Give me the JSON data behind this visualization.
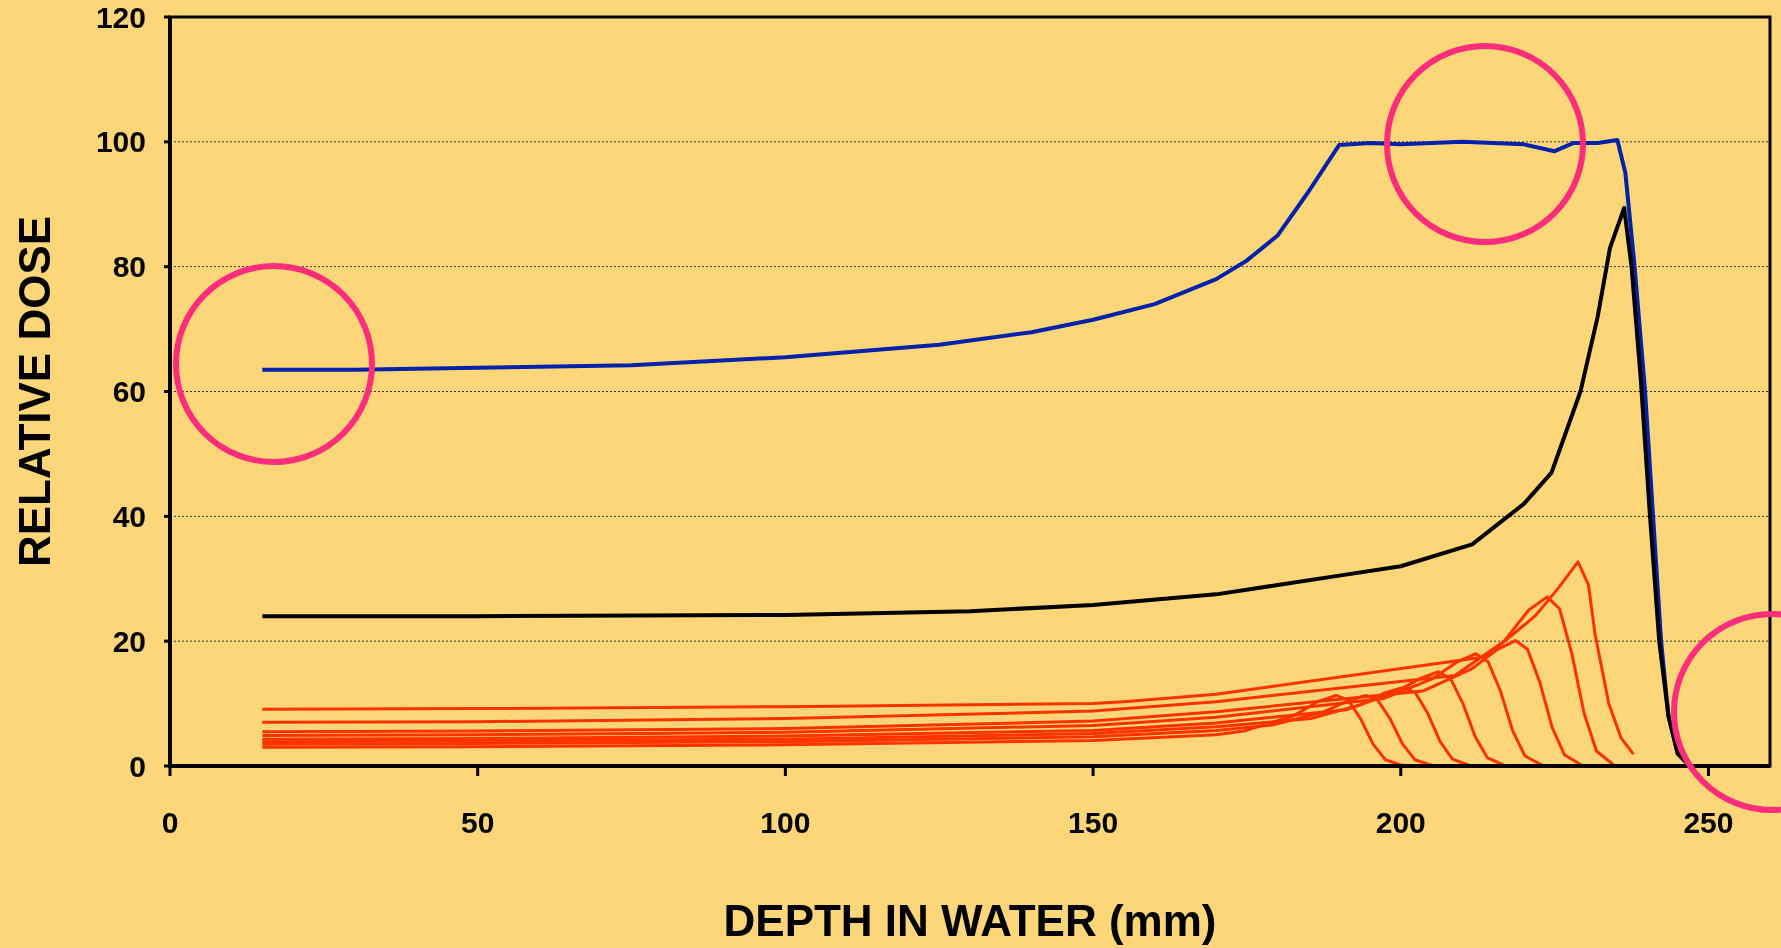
{
  "chart_data": {
    "type": "line",
    "xlabel": "DEPTH IN WATER (mm)",
    "ylabel": "RELATIVE DOSE",
    "xlim": [
      0,
      260
    ],
    "xticks": [
      0,
      50,
      100,
      150,
      200,
      250
    ],
    "ylim": [
      0,
      120
    ],
    "yticks": [
      0,
      20,
      40,
      60,
      80,
      100,
      120
    ],
    "grid": "y",
    "line_style": "solid",
    "series": [
      {
        "color": "#0022aa",
        "x": [
          15,
          30,
          50,
          75,
          100,
          125,
          140,
          150,
          160,
          170,
          175,
          180,
          185,
          190,
          195,
          200,
          210,
          215,
          220,
          225,
          228,
          232,
          235.2,
          236.5,
          238,
          239.7,
          241,
          242.3,
          243.5,
          245,
          246.5
        ],
        "values": [
          63.5,
          63.5,
          63.8,
          64.2,
          65.5,
          67.5,
          69.5,
          71.5,
          74,
          78,
          81,
          85,
          92,
          99.5,
          99.8,
          99.6,
          100,
          99.8,
          99.6,
          98.5,
          99.8,
          99.8,
          100.3,
          95,
          80,
          60,
          40,
          20,
          8,
          2,
          0.5
        ]
      },
      {
        "color": "#000000",
        "x": [
          15,
          50,
          100,
          130,
          150,
          170,
          180,
          190,
          200,
          211.6,
          220,
          224.5,
          229.2,
          232,
          234,
          236.3,
          237.5,
          239,
          240.5,
          242,
          243.5,
          245,
          247
        ],
        "values": [
          24,
          24,
          24.2,
          24.8,
          25.8,
          27.5,
          29,
          30.5,
          32,
          35.5,
          42,
          47,
          60,
          72,
          83,
          89.4,
          80,
          62,
          40,
          20,
          8,
          2,
          0
        ]
      },
      {
        "color": "#ff3300",
        "x": [
          15,
          50,
          100,
          150,
          170,
          174.5,
          182.5,
          186.5,
          189.5,
          191.5,
          193.5,
          195.5,
          197.5,
          200.5,
          240
        ],
        "values": [
          3.0,
          3.1,
          3.4,
          4.1,
          5.0,
          5.6,
          8.0,
          10.3,
          11.3,
          10.5,
          7.5,
          3.5,
          1.0,
          0,
          0
        ]
      },
      {
        "color": "#ff3300",
        "x": [
          15,
          50,
          100,
          150,
          170,
          179.3,
          187.3,
          191.3,
          194.3,
          196.3,
          198.3,
          200.3,
          202.3,
          205.3,
          240
        ],
        "values": [
          3.5,
          3.6,
          3.9,
          4.7,
          5.7,
          6.6,
          8.6,
          10.4,
          11.3,
          10.5,
          7.5,
          3.5,
          1.0,
          0,
          0
        ]
      },
      {
        "color": "#ff3300",
        "x": [
          15,
          50,
          100,
          150,
          170,
          185.4,
          193.4,
          197.4,
          200.4,
          202.4,
          204.4,
          206.4,
          208.4,
          211.4,
          240
        ],
        "values": [
          3.9,
          4.0,
          4.3,
          5.2,
          6.3,
          7.6,
          9.8,
          11.7,
          12.6,
          11.7,
          8.4,
          3.9,
          1.1,
          0,
          0
        ]
      },
      {
        "color": "#ff3300",
        "x": [
          15,
          50,
          100,
          150,
          170,
          191.1,
          199.1,
          203.1,
          206.1,
          208.1,
          210.1,
          212.1,
          214.1,
          217.1,
          240
        ],
        "values": [
          4.3,
          4.4,
          4.8,
          5.7,
          6.9,
          9.0,
          11.8,
          14.0,
          15.1,
          14.0,
          10.0,
          4.7,
          1.3,
          0,
          0
        ]
      },
      {
        "color": "#ff3300",
        "x": [
          15,
          50,
          100,
          150,
          170,
          197.2,
          205.2,
          209.2,
          212.2,
          214.2,
          216.2,
          218.2,
          220.2,
          223.2,
          240
        ],
        "values": [
          4.9,
          5.0,
          5.4,
          6.5,
          7.8,
          10.8,
          14.0,
          16.7,
          18.0,
          16.7,
          12.0,
          5.6,
          1.6,
          0,
          0
        ]
      },
      {
        "color": "#ff3300",
        "x": [
          15,
          50,
          100,
          150,
          170,
          203.6,
          211.6,
          215.6,
          218.6,
          220.6,
          222.6,
          224.6,
          226.6,
          229.6,
          240
        ],
        "values": [
          5.5,
          5.6,
          6.0,
          7.2,
          8.7,
          12.0,
          15.6,
          18.6,
          20.1,
          18.7,
          13.4,
          6.2,
          1.8,
          0,
          0
        ]
      },
      {
        "color": "#ff3300",
        "x": [
          15,
          50,
          100,
          150,
          170,
          208.8,
          216.8,
          220.8,
          223.8,
          225.8,
          227.8,
          229.8,
          231.8,
          234.8,
          240
        ],
        "values": [
          7.0,
          7.1,
          7.6,
          8.8,
          10.3,
          14.5,
          20.0,
          25.0,
          27.1,
          25.2,
          18.0,
          8.4,
          2.4,
          0,
          0
        ]
      },
      {
        "color": "#ff3300",
        "x": [
          15,
          50,
          100,
          150,
          155,
          170,
          213.8,
          221.8,
          225.6,
          228.8,
          230.5,
          231.6,
          233.8,
          235.8,
          237.8
        ],
        "values": [
          9.1,
          9.2,
          9.5,
          10.0,
          10.3,
          11.5,
          17.5,
          24.0,
          28.5,
          32.7,
          29,
          21,
          10,
          4.5,
          1.9
        ]
      }
    ]
  }
}
